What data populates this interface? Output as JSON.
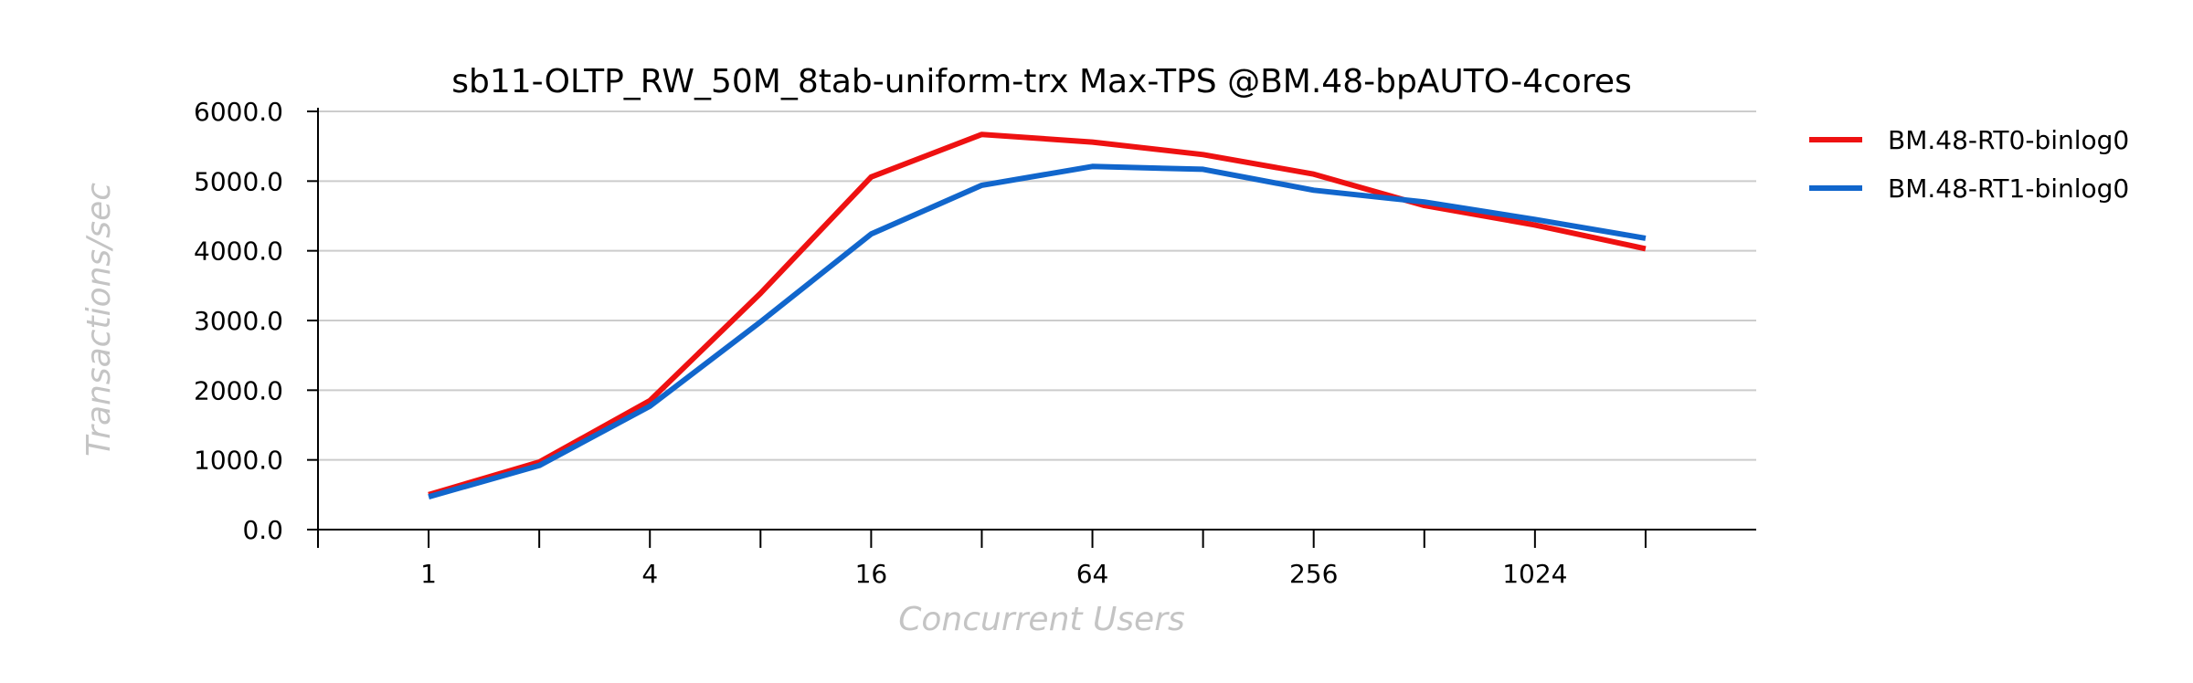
{
  "chart_data": {
    "type": "line",
    "title": "sb11-OLTP_RW_50M_8tab-uniform-trx Max-TPS @BM.48-bpAUTO-4cores",
    "xlabel": "Concurrent Users",
    "ylabel": "Transactions/sec",
    "x_scale": "log2",
    "x": [
      1,
      2,
      4,
      8,
      16,
      32,
      64,
      128,
      256,
      512,
      1024,
      2048
    ],
    "x_ticks": [
      1,
      2,
      4,
      8,
      16,
      32,
      64,
      128,
      256,
      512,
      1024,
      2048
    ],
    "x_tick_labels": [
      "1",
      "",
      "4",
      "",
      "16",
      "",
      "64",
      "",
      "256",
      "",
      "1024",
      ""
    ],
    "xlim": [
      0.5,
      4096
    ],
    "ylim": [
      0,
      6000
    ],
    "y_ticks": [
      0,
      1000,
      2000,
      3000,
      4000,
      5000,
      6000
    ],
    "y_tick_labels": [
      "0.0",
      "1000.0",
      "2000.0",
      "3000.0",
      "4000.0",
      "5000.0",
      "6000.0"
    ],
    "grid": "horizontal",
    "legend_position": "right",
    "series": [
      {
        "name": "BM.48-RT0-binlog0",
        "color": "#ee1111",
        "values": [
          500,
          970,
          1850,
          3390,
          5060,
          5670,
          5560,
          5380,
          5100,
          4650,
          4370,
          4030
        ]
      },
      {
        "name": "BM.48-RT1-binlog0",
        "color": "#1166cc",
        "values": [
          470,
          920,
          1770,
          2980,
          4240,
          4940,
          5210,
          5170,
          4870,
          4700,
          4450,
          4180
        ]
      }
    ]
  }
}
